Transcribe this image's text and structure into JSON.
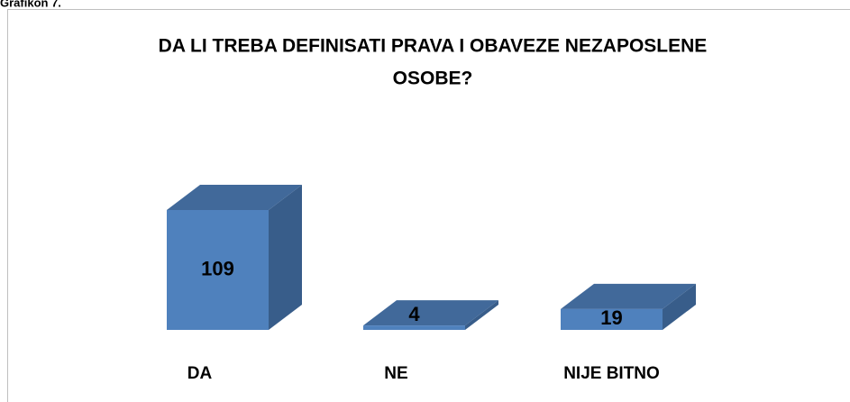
{
  "caption": "Grafikon 7.",
  "chart_data": {
    "type": "bar3d",
    "title": [
      "DA LI TREBA DEFINISATI PRAVA I OBAVEZE NEZAPOSLENE",
      "OSOBE?"
    ],
    "categories": [
      "DA",
      "NE",
      "NIJE BITNO"
    ],
    "values": [
      109,
      4,
      19
    ],
    "color": "#4f81bd",
    "side_color": "#385d8a",
    "top_color": "#41699a"
  }
}
